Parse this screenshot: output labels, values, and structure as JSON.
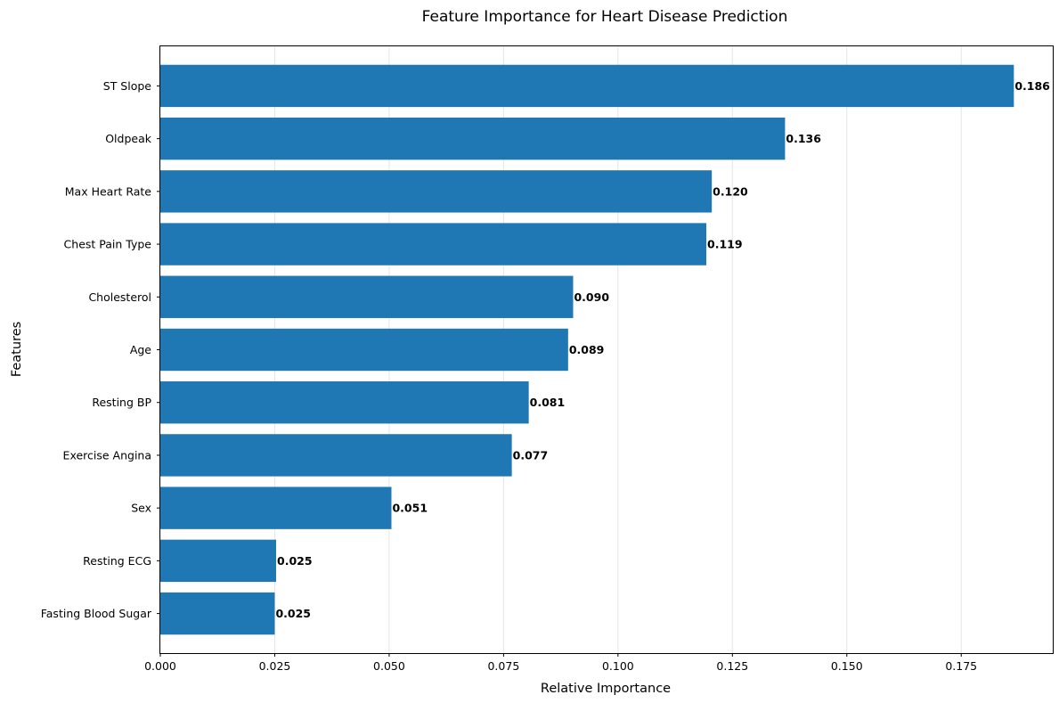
{
  "chart_data": {
    "type": "bar",
    "orientation": "horizontal",
    "title": "Feature Importance for Heart Disease Prediction",
    "xlabel": "Relative Importance",
    "ylabel": "Features",
    "xlim": [
      0,
      0.195
    ],
    "xticks": [
      "0.000",
      "0.025",
      "0.050",
      "0.075",
      "0.100",
      "0.125",
      "0.150",
      "0.175"
    ],
    "xtick_values": [
      0,
      0.025,
      0.05,
      0.075,
      0.1,
      0.125,
      0.15,
      0.175
    ],
    "grid": "x-axis vertical lines",
    "bar_color": "#1f77b4",
    "categories": [
      "ST Slope",
      "Oldpeak",
      "Max Heart Rate",
      "Chest Pain Type",
      "Cholesterol",
      "Age",
      "Resting BP",
      "Exercise Angina",
      "Sex",
      "Resting ECG",
      "Fasting Blood Sugar"
    ],
    "values": [
      0.1865,
      0.1365,
      0.1205,
      0.1193,
      0.0902,
      0.0891,
      0.0805,
      0.0768,
      0.0505,
      0.0253,
      0.025
    ],
    "value_labels": [
      "0.186",
      "0.136",
      "0.120",
      "0.119",
      "0.090",
      "0.089",
      "0.081",
      "0.077",
      "0.051",
      "0.025",
      "0.025"
    ]
  }
}
